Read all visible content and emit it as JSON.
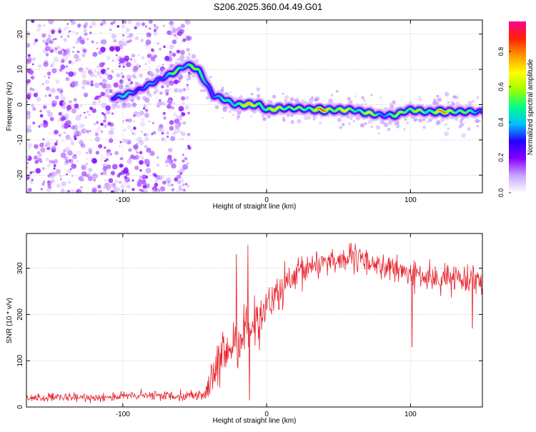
{
  "figure_title": "S206.2025.360.04.49.G01",
  "colors": {
    "snr_line": "#e8202a",
    "grid": "#a0a0a0",
    "axis": "#000000",
    "background": "#ffffff"
  },
  "colorbar": {
    "label": "Normalized spectral amplitude",
    "ticks": [
      "0.0",
      "0.2",
      "0.4",
      "0.6",
      "0.8"
    ],
    "tick_values": [
      0.0,
      0.2,
      0.4,
      0.6,
      0.8
    ],
    "range": [
      0,
      0.97
    ],
    "palette": [
      "#ffffff",
      "#c9a6ff",
      "#8800ff",
      "#2200ff",
      "#00c0ff",
      "#00ff88",
      "#9cff00",
      "#ffff00",
      "#ff9900",
      "#ff2000",
      "#ff0090"
    ]
  },
  "chart_data": [
    {
      "type": "heatmap",
      "title": "",
      "xlabel": "Height of straight line (km)",
      "ylabel": "Frequency (Hz)",
      "xlim": [
        -167,
        150
      ],
      "ylim": [
        -25,
        24
      ],
      "x_ticks": [
        -100,
        0,
        100
      ],
      "x_tick_labels": [
        "-100",
        "0",
        "100"
      ],
      "y_ticks": [
        20,
        10,
        0,
        -10,
        -20
      ],
      "y_tick_labels": [
        "20",
        "10",
        "0",
        "-10",
        "-20"
      ],
      "grid": true,
      "ridge": {
        "x": [
          -107,
          -100,
          -90,
          -80,
          -70,
          -63,
          -57,
          -52,
          -47,
          -42,
          -37,
          -32,
          -27,
          -22,
          -15,
          -5,
          0,
          10,
          20,
          40,
          60,
          72,
          80,
          85,
          90,
          95,
          100,
          110,
          120,
          130,
          140,
          150
        ],
        "frequency": [
          2,
          2.5,
          4,
          6,
          8,
          9.5,
          11,
          11,
          9.5,
          6,
          2.5,
          2,
          1,
          0,
          0,
          0,
          -1.5,
          -1,
          -1,
          -1.5,
          -1.5,
          -2.5,
          -3,
          -3,
          -3,
          -2,
          -1.5,
          -2,
          -2,
          -2,
          -2,
          -2
        ],
        "amplitude": [
          0.45,
          0.5,
          0.45,
          0.4,
          0.5,
          0.6,
          0.55,
          0.75,
          0.55,
          0.5,
          0.5,
          0.45,
          0.55,
          0.65,
          0.75,
          0.8,
          0.6,
          0.85,
          0.55,
          0.9,
          0.65,
          0.7,
          0.55,
          0.5,
          0.6,
          0.8,
          0.7,
          0.6,
          0.85,
          0.8,
          0.55,
          0.5
        ]
      },
      "noise_region_x": [
        -167,
        -53
      ],
      "noise_amplitude": 0.15
    },
    {
      "type": "line",
      "title": "",
      "xlabel": "Height of straight line (km)",
      "ylabel": "SNR (10 * v/v)",
      "xlim": [
        -167,
        150
      ],
      "ylim": [
        0,
        375
      ],
      "x_ticks": [
        -100,
        0,
        100
      ],
      "x_tick_labels": [
        "-100",
        "0",
        "100"
      ],
      "y_ticks": [
        0,
        100,
        200,
        300
      ],
      "y_tick_labels": [
        "0",
        "100",
        "200",
        "300"
      ],
      "grid": true,
      "series": [
        {
          "name": "SNR",
          "x": [
            -167,
            -150,
            -130,
            -110,
            -90,
            -70,
            -55,
            -45,
            -42,
            -38,
            -35,
            -30,
            -25,
            -20,
            -15,
            -10,
            -5,
            0,
            5,
            10,
            15,
            20,
            25,
            30,
            40,
            50,
            60,
            70,
            80,
            90,
            100,
            110,
            120,
            130,
            140,
            150
          ],
          "mean": [
            20,
            20,
            20,
            22,
            24,
            25,
            25,
            25,
            35,
            60,
            80,
            105,
            130,
            150,
            160,
            180,
            200,
            215,
            235,
            250,
            265,
            275,
            290,
            305,
            315,
            320,
            320,
            315,
            305,
            295,
            290,
            280,
            275,
            280,
            280,
            275
          ],
          "noise_spread": [
            12,
            12,
            12,
            13,
            14,
            14,
            15,
            15,
            30,
            45,
            60,
            75,
            80,
            75,
            75,
            70,
            70,
            65,
            60,
            55,
            55,
            50,
            50,
            45,
            40,
            38,
            38,
            38,
            38,
            38,
            38,
            38,
            38,
            38,
            38,
            38
          ],
          "spikes": [
            {
              "x": -21,
              "y": 330
            },
            {
              "x": -13,
              "y": 350
            },
            {
              "x": -12,
              "y": 15
            },
            {
              "x": 101,
              "y": 130
            },
            {
              "x": 143,
              "y": 170
            }
          ]
        }
      ]
    }
  ]
}
